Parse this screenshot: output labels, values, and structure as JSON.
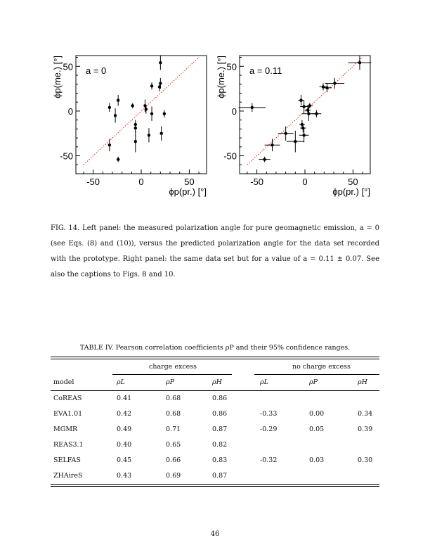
{
  "chart_data": [
    {
      "type": "scatter",
      "title": "",
      "annotation": "a = 0",
      "xlabel": "ϕp(pr.) [°]",
      "ylabel": "ϕp(me.) [°]",
      "xlim": [
        -68,
        68
      ],
      "ylim": [
        -70,
        62
      ],
      "xticks": [
        "-50",
        "0",
        "50"
      ],
      "yticks": [
        "50",
        "0",
        "-50"
      ],
      "reference_line": {
        "style": "dotted",
        "color": "#e02020",
        "from": [
          -60,
          -60
        ],
        "to": [
          60,
          60
        ]
      },
      "points": [
        {
          "x": -33,
          "y": 4,
          "yerr": 5
        },
        {
          "x": -33,
          "y": -38,
          "yerr": 7
        },
        {
          "x": -27,
          "y": -5,
          "yerr": 8
        },
        {
          "x": -24,
          "y": 12,
          "yerr": 6
        },
        {
          "x": -24,
          "y": -54,
          "yerr": 3
        },
        {
          "x": -9,
          "y": 6,
          "yerr": 3
        },
        {
          "x": -6,
          "y": -15,
          "yerr": 5
        },
        {
          "x": -6,
          "y": -19,
          "yerr": 5
        },
        {
          "x": -6,
          "y": -34,
          "yerr": 12
        },
        {
          "x": 4,
          "y": 6,
          "yerr": 7
        },
        {
          "x": 5,
          "y": 2,
          "yerr": 5
        },
        {
          "x": 8,
          "y": -27,
          "yerr": 8
        },
        {
          "x": 11,
          "y": 28,
          "yerr": 4
        },
        {
          "x": 11,
          "y": -3,
          "yerr": 8
        },
        {
          "x": 19,
          "y": 27,
          "yerr": 5
        },
        {
          "x": 20,
          "y": 54,
          "yerr": 8
        },
        {
          "x": 20,
          "y": 31,
          "yerr": 6
        },
        {
          "x": 21,
          "y": -25,
          "yerr": 8
        },
        {
          "x": 24,
          "y": -3,
          "yerr": 4
        }
      ]
    },
    {
      "type": "scatter",
      "title": "",
      "annotation": "a = 0.11",
      "xlabel": "ϕp(pr.) [°]",
      "ylabel": "ϕp(me.) [°]",
      "xlim": [
        -68,
        68
      ],
      "ylim": [
        -70,
        62
      ],
      "xticks": [
        "-50",
        "0",
        "50"
      ],
      "yticks": [
        "50",
        "0",
        "-50"
      ],
      "reference_line": {
        "style": "dotted",
        "color": "#e02020",
        "from": [
          -60,
          -60
        ],
        "to": [
          60,
          60
        ]
      },
      "points": [
        {
          "x": -55,
          "y": 4,
          "xerr": 14,
          "yerr": 5
        },
        {
          "x": -42,
          "y": -54,
          "xerr": 6,
          "yerr": 3
        },
        {
          "x": -34,
          "y": -38,
          "xerr": 8,
          "yerr": 7
        },
        {
          "x": -20,
          "y": -25,
          "xerr": 8,
          "yerr": 8
        },
        {
          "x": -10,
          "y": -34,
          "xerr": 9,
          "yerr": 12
        },
        {
          "x": -4,
          "y": 12,
          "xerr": 3,
          "yerr": 6
        },
        {
          "x": -3,
          "y": -15,
          "xerr": 3,
          "yerr": 5
        },
        {
          "x": -2,
          "y": -19,
          "xerr": 3,
          "yerr": 5
        },
        {
          "x": -1,
          "y": -27,
          "xerr": 5,
          "yerr": 8
        },
        {
          "x": -1,
          "y": 5,
          "xerr": 4,
          "yerr": 7
        },
        {
          "x": 3,
          "y": 1,
          "xerr": 3,
          "yerr": 5
        },
        {
          "x": 5,
          "y": 6,
          "xerr": 3,
          "yerr": 3
        },
        {
          "x": 4,
          "y": -3,
          "xerr": 7,
          "yerr": 8
        },
        {
          "x": 12,
          "y": -3,
          "xerr": 5,
          "yerr": 4
        },
        {
          "x": 19,
          "y": 27,
          "xerr": 4,
          "yerr": 4
        },
        {
          "x": 23,
          "y": 26,
          "xerr": 5,
          "yerr": 5
        },
        {
          "x": 31,
          "y": 31,
          "xerr": 10,
          "yerr": 6
        },
        {
          "x": 57,
          "y": 54,
          "xerr": 12,
          "yerr": 8
        }
      ]
    }
  ],
  "caption": {
    "label": "FIG. 14.",
    "text": "Left panel: the measured polarization angle for pure geomagnetic emission, a = 0 (see Eqs. (8) and (10)), versus the predicted polarization angle for the data set recorded with the prototype. Right panel: the same data set but for a value of a = 0.11 ± 0.07. See also the captions to Figs. 8 and 10."
  },
  "table": {
    "title": "TABLE IV. Pearson correlation coefficients ρP and their 95% confidence ranges.",
    "group_headers": [
      "charge excess",
      "no charge excess"
    ],
    "columns": [
      "model",
      "ρL",
      "ρP",
      "ρH",
      "ρL",
      "ρP",
      "ρH"
    ],
    "rows": [
      [
        "CoREAS",
        "0.41",
        "0.68",
        "0.86",
        "",
        "",
        ""
      ],
      [
        "EVA1.01",
        "0.42",
        "0.68",
        "0.86",
        "-0.33",
        "0.00",
        "0.34"
      ],
      [
        "MGMR",
        "0.49",
        "0.71",
        "0.87",
        "-0.29",
        "0.05",
        "0.39"
      ],
      [
        "REAS3.1",
        "0.40",
        "0.65",
        "0.82",
        "",
        "",
        ""
      ],
      [
        "SELFAS",
        "0.45",
        "0.66",
        "0.83",
        "-0.32",
        "0.03",
        "0.30"
      ],
      [
        "ZHAireS",
        "0.43",
        "0.69",
        "0.87",
        "",
        "",
        ""
      ]
    ]
  },
  "page_number": "46"
}
